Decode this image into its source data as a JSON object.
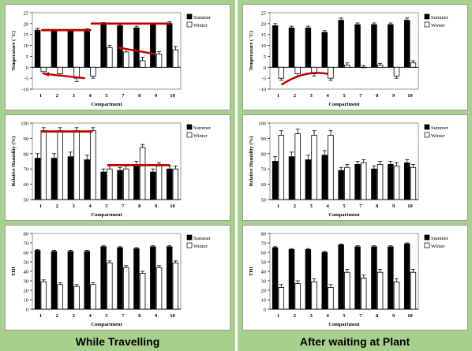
{
  "colors": {
    "background": "#a8d08d",
    "summer": "#000000",
    "winter": "#ffffff",
    "annotation": "#c00000"
  },
  "columns": [
    {
      "caption": "While Travelling"
    },
    {
      "caption": "After waiting at Plant"
    }
  ],
  "chart_data": [
    {
      "type": "bar",
      "column": 0,
      "ylabel": "Temperature ( ˚C)",
      "xlabel": "Compartment",
      "categories": [
        "1",
        "2",
        "3",
        "4",
        "5",
        "7",
        "8",
        "9",
        "10"
      ],
      "ylim": [
        -10,
        25
      ],
      "yticks": [
        -10,
        -5,
        0,
        5,
        10,
        15,
        20,
        25
      ],
      "legend": [
        "Summer",
        "Winter"
      ],
      "series": [
        {
          "name": "Summer",
          "values": [
            17,
            16.5,
            16.5,
            17,
            20,
            19,
            18,
            19.5,
            20
          ],
          "errors": [
            0.8,
            0.5,
            0.5,
            0.6,
            0.5,
            0.5,
            0.8,
            0.8,
            0.8
          ]
        },
        {
          "name": "Winter",
          "values": [
            -2,
            -3,
            -5,
            -4,
            9,
            7,
            3,
            6,
            8
          ],
          "errors": [
            1,
            1,
            1.5,
            1,
            1,
            1.5,
            1.5,
            1.2,
            1.5
          ]
        }
      ],
      "annotations": [
        {
          "kind": "line",
          "x1": 0.6,
          "y1": 17,
          "x2": 3.5,
          "y2": 17
        },
        {
          "kind": "line",
          "x1": 3.6,
          "y1": 20,
          "x2": 8.4,
          "y2": 20
        },
        {
          "kind": "arrow",
          "x1": 3.2,
          "y1": -5,
          "x2": 0.7,
          "y2": -3
        },
        {
          "kind": "arrow",
          "x1": 7.5,
          "y1": 6,
          "x2": 5.2,
          "y2": 9
        }
      ]
    },
    {
      "type": "bar",
      "column": 1,
      "ylabel": "Temperature ( ˚C)",
      "xlabel": "Compartment",
      "categories": [
        "1",
        "2",
        "3",
        "4",
        "5",
        "7",
        "8",
        "9",
        "10"
      ],
      "ylim": [
        -10,
        25
      ],
      "yticks": [
        -10,
        -5,
        0,
        5,
        10,
        15,
        20,
        25
      ],
      "legend": [
        "Summer",
        "Winter"
      ],
      "series": [
        {
          "name": "Summer",
          "values": [
            19,
            18,
            18,
            16,
            21.5,
            19.5,
            19.5,
            19.5,
            21.5
          ],
          "errors": [
            1,
            0.8,
            0.8,
            0.8,
            1,
            0.8,
            0.8,
            0.8,
            1
          ]
        },
        {
          "name": "Winter",
          "values": [
            -5,
            -3,
            -3,
            -5,
            1,
            0,
            1,
            -4,
            2
          ],
          "errors": [
            1,
            1,
            1,
            1,
            1,
            0.8,
            0.8,
            1,
            1
          ]
        }
      ],
      "annotations": [
        {
          "kind": "arc",
          "x1": 0.7,
          "y1": -8,
          "xc": 2.1,
          "yc": -1,
          "x2": 3.5,
          "y2": -3
        }
      ]
    },
    {
      "type": "bar",
      "column": 0,
      "ylabel": "Relative Humidity (%)",
      "xlabel": "Compartment",
      "categories": [
        "1",
        "2",
        "3",
        "4",
        "5",
        "7",
        "8",
        "9",
        "10"
      ],
      "ylim": [
        50,
        100
      ],
      "yticks": [
        50,
        60,
        70,
        80,
        90,
        100
      ],
      "legend": [
        "Summer",
        "Winter"
      ],
      "series": [
        {
          "name": "Summer",
          "values": [
            77,
            77,
            78,
            76,
            68,
            69,
            73,
            68,
            70
          ],
          "errors": [
            3,
            3,
            3,
            3,
            2,
            2,
            2,
            2,
            2
          ]
        },
        {
          "name": "Winter",
          "values": [
            95,
            95,
            95,
            95,
            70,
            70,
            84,
            72,
            70
          ],
          "errors": [
            2,
            2,
            2,
            2,
            2,
            2,
            2,
            2,
            2
          ]
        }
      ],
      "annotations": [
        {
          "kind": "line",
          "x1": 0.6,
          "y1": 94.5,
          "x2": 3.6,
          "y2": 94.5
        },
        {
          "kind": "line",
          "x1": 4.6,
          "y1": 72.5,
          "x2": 8.3,
          "y2": 72.5
        }
      ]
    },
    {
      "type": "bar",
      "column": 1,
      "ylabel": "Relative Humidity (%)",
      "xlabel": "Compartment",
      "categories": [
        "1",
        "2",
        "3",
        "4",
        "5",
        "7",
        "8",
        "9",
        "10"
      ],
      "ylim": [
        50,
        100
      ],
      "yticks": [
        50,
        60,
        70,
        80,
        90,
        100
      ],
      "legend": [
        "Summer",
        "Winter"
      ],
      "series": [
        {
          "name": "Summer",
          "values": [
            75,
            78,
            76,
            79,
            69,
            73,
            70,
            73,
            74
          ],
          "errors": [
            3,
            3,
            3,
            3,
            2,
            2,
            2,
            2,
            2
          ]
        },
        {
          "name": "Winter",
          "values": [
            92,
            93,
            92,
            92,
            71,
            74,
            73,
            72,
            71
          ],
          "errors": [
            3,
            3,
            3,
            3,
            2,
            2,
            2,
            2,
            2
          ]
        }
      ],
      "annotations": []
    },
    {
      "type": "bar",
      "column": 0,
      "ylabel": "THI",
      "xlabel": "Compartment",
      "categories": [
        "1",
        "2",
        "3",
        "4",
        "5",
        "7",
        "8",
        "9",
        "10"
      ],
      "ylim": [
        0,
        80
      ],
      "yticks": [
        0,
        10,
        20,
        30,
        40,
        50,
        60,
        70,
        80
      ],
      "legend": [
        "Summer",
        "Winter"
      ],
      "series": [
        {
          "name": "Summer",
          "values": [
            62,
            61,
            61,
            61,
            66,
            65,
            64,
            66,
            66
          ],
          "errors": [
            1,
            1,
            1,
            1,
            1,
            1,
            1,
            1,
            1
          ]
        },
        {
          "name": "Winter",
          "values": [
            29,
            26,
            24,
            26,
            49,
            44,
            38,
            44,
            49
          ],
          "errors": [
            2,
            2,
            2,
            2,
            2,
            2,
            2,
            2,
            2
          ]
        }
      ],
      "annotations": []
    },
    {
      "type": "bar",
      "column": 1,
      "ylabel": "THI",
      "xlabel": "Compartment",
      "categories": [
        "1",
        "2",
        "3",
        "4",
        "5",
        "7",
        "8",
        "9",
        "10"
      ],
      "ylim": [
        0,
        80
      ],
      "yticks": [
        0,
        10,
        20,
        30,
        40,
        50,
        60,
        70,
        80
      ],
      "legend": [
        "Summer",
        "Winter"
      ],
      "series": [
        {
          "name": "Summer",
          "values": [
            65,
            63,
            63,
            60,
            68,
            66,
            66,
            66,
            69
          ],
          "errors": [
            1,
            1,
            1,
            1,
            1,
            1,
            1,
            1,
            1
          ]
        },
        {
          "name": "Winter",
          "values": [
            23,
            27,
            29,
            23,
            39,
            33,
            39,
            29,
            39
          ],
          "errors": [
            3,
            3,
            3,
            3,
            3,
            3,
            3,
            3,
            3
          ]
        }
      ],
      "annotations": []
    }
  ]
}
